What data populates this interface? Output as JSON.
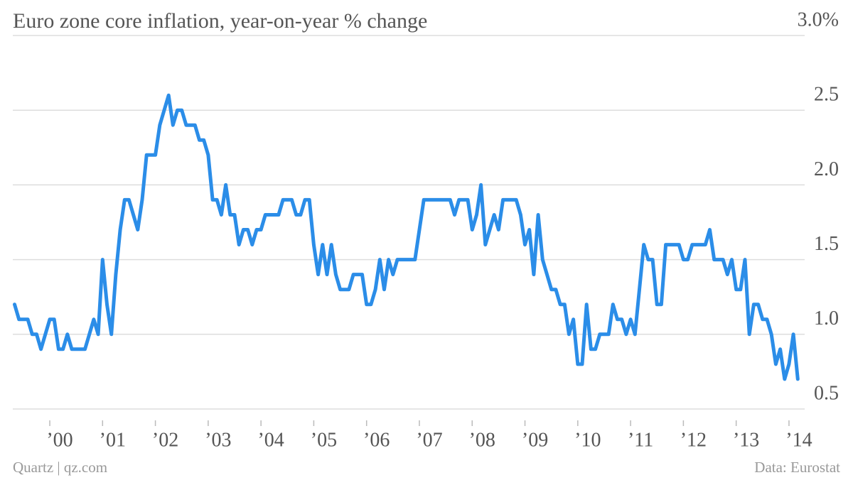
{
  "chart_data": {
    "type": "line",
    "title": "Euro zone core inflation, year-on-year % change",
    "source_left": "Quartz | qz.com",
    "source_right": "Data: Eurostat",
    "categories": [
      null,
      null,
      null,
      null,
      null,
      null,
      null,
      null,
      "’00",
      null,
      null,
      null,
      null,
      null,
      null,
      null,
      null,
      null,
      null,
      null,
      "’01",
      null,
      null,
      null,
      null,
      null,
      null,
      null,
      null,
      null,
      null,
      null,
      "’02",
      null,
      null,
      null,
      null,
      null,
      null,
      null,
      null,
      null,
      null,
      null,
      "’03",
      null,
      null,
      null,
      null,
      null,
      null,
      null,
      null,
      null,
      null,
      null,
      "’04",
      null,
      null,
      null,
      null,
      null,
      null,
      null,
      null,
      null,
      null,
      null,
      "’05",
      null,
      null,
      null,
      null,
      null,
      null,
      null,
      null,
      null,
      null,
      null,
      "’06",
      null,
      null,
      null,
      null,
      null,
      null,
      null,
      null,
      null,
      null,
      null,
      "’07",
      null,
      null,
      null,
      null,
      null,
      null,
      null,
      null,
      null,
      null,
      null,
      "’08",
      null,
      null,
      null,
      null,
      null,
      null,
      null,
      null,
      null,
      null,
      null,
      "’09",
      null,
      null,
      null,
      null,
      null,
      null,
      null,
      null,
      null,
      null,
      null,
      "’10",
      null,
      null,
      null,
      null,
      null,
      null,
      null,
      null,
      null,
      null,
      null,
      "’11",
      null,
      null,
      null,
      null,
      null,
      null,
      null,
      null,
      null,
      null,
      null,
      "’12",
      null,
      null,
      null,
      null,
      null,
      null,
      null,
      null,
      null,
      null,
      null,
      "’13",
      null,
      null,
      null,
      null,
      null,
      null,
      null,
      null,
      null,
      null,
      null,
      "’14",
      null,
      null
    ],
    "series": [
      {
        "name": "Core inflation",
        "color": "#2b8de8",
        "values": [
          1.2,
          1.1,
          1.1,
          1.1,
          1.0,
          1.0,
          0.9,
          1.0,
          1.1,
          1.1,
          0.9,
          0.9,
          1.0,
          0.9,
          0.9,
          0.9,
          0.9,
          1.0,
          1.1,
          1.0,
          1.5,
          1.2,
          1.0,
          1.4,
          1.7,
          1.9,
          1.9,
          1.8,
          1.7,
          1.9,
          2.2,
          2.2,
          2.2,
          2.4,
          2.5,
          2.6,
          2.4,
          2.5,
          2.5,
          2.4,
          2.4,
          2.4,
          2.3,
          2.3,
          2.2,
          1.9,
          1.9,
          1.8,
          2.0,
          1.8,
          1.8,
          1.6,
          1.7,
          1.7,
          1.6,
          1.7,
          1.7,
          1.8,
          1.8,
          1.8,
          1.8,
          1.9,
          1.9,
          1.9,
          1.8,
          1.8,
          1.9,
          1.9,
          1.6,
          1.4,
          1.6,
          1.4,
          1.6,
          1.4,
          1.3,
          1.3,
          1.3,
          1.4,
          1.4,
          1.4,
          1.2,
          1.2,
          1.3,
          1.5,
          1.3,
          1.5,
          1.4,
          1.5,
          1.5,
          1.5,
          1.5,
          1.5,
          1.7,
          1.9,
          1.9,
          1.9,
          1.9,
          1.9,
          1.9,
          1.9,
          1.8,
          1.9,
          1.9,
          1.9,
          1.7,
          1.8,
          2.0,
          1.6,
          1.7,
          1.8,
          1.7,
          1.9,
          1.9,
          1.9,
          1.9,
          1.8,
          1.6,
          1.7,
          1.4,
          1.8,
          1.5,
          1.4,
          1.3,
          1.3,
          1.2,
          1.2,
          1.0,
          1.1,
          0.8,
          0.8,
          1.2,
          0.9,
          0.9,
          1.0,
          1.0,
          1.0,
          1.2,
          1.1,
          1.1,
          1.0,
          1.1,
          1.0,
          1.3,
          1.6,
          1.5,
          1.5,
          1.2,
          1.2,
          1.6,
          1.6,
          1.6,
          1.6,
          1.5,
          1.5,
          1.6,
          1.6,
          1.6,
          1.6,
          1.7,
          1.5,
          1.5,
          1.5,
          1.4,
          1.5,
          1.3,
          1.3,
          1.5,
          1.0,
          1.2,
          1.2,
          1.1,
          1.1,
          1.0,
          0.8,
          0.9,
          0.7,
          0.8,
          1.0,
          0.7
        ]
      }
    ],
    "ylim": [
      0.5,
      3.0
    ],
    "yticks": [
      0.5,
      {
        "value": 1,
        "label": "1.0"
      },
      1.5,
      {
        "value": 2,
        "label": "2.0"
      },
      2.5,
      {
        "value": 3,
        "label": "3.0%"
      }
    ],
    "grid": true
  }
}
